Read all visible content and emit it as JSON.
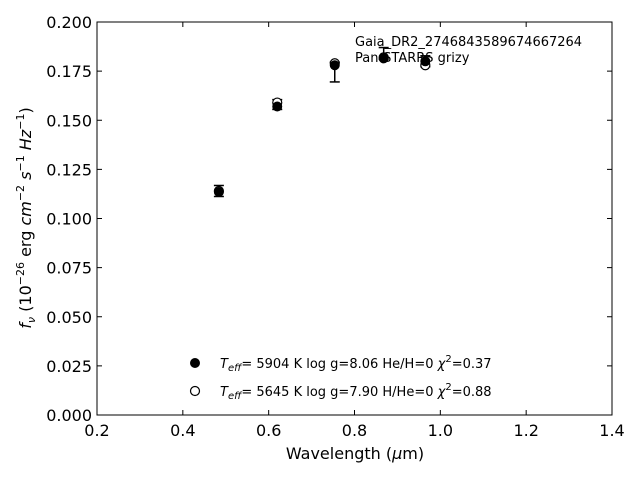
{
  "chart_data": {
    "type": "scatter",
    "title": "",
    "xlabel": "Wavelength (μm)",
    "ylabel": "f_ν (10^-26 erg cm^-2 s^-1 Hz^-1)",
    "xlim": [
      0.2,
      1.4
    ],
    "ylim": [
      0.0,
      0.2
    ],
    "xticks": [
      "0.2",
      "0.4",
      "0.6",
      "0.8",
      "1.0",
      "1.2",
      "1.4"
    ],
    "yticks": [
      "0.000",
      "0.025",
      "0.050",
      "0.075",
      "0.100",
      "0.125",
      "0.150",
      "0.175",
      "0.200"
    ],
    "grid": false,
    "annotations": [
      "Gaia_DR2_2746843589674667264",
      "Pan-STARRS grizy"
    ],
    "observed": {
      "x": [
        0.484,
        0.62,
        0.754,
        0.868,
        0.965
      ],
      "y": [
        0.114,
        0.158,
        0.1745,
        0.184,
        0.18
      ],
      "yerr": [
        0.0028,
        0.0025,
        0.005,
        0.003,
        0.0028
      ]
    },
    "series": [
      {
        "legend": "T_eff=  5904 K  log g=8.06  He/H=0  χ²=0.37",
        "marker": "filled-circle",
        "x": [
          0.484,
          0.62,
          0.754,
          0.868,
          0.965
        ],
        "y": [
          0.1135,
          0.157,
          0.178,
          0.1815,
          0.18
        ]
      },
      {
        "legend": "T_eff=  5645 K  log g=7.90  H/He=0  χ²=0.88",
        "marker": "open-circle",
        "x": [
          0.484,
          0.62,
          0.754,
          0.868,
          0.965
        ],
        "y": [
          0.114,
          0.159,
          0.179,
          0.182,
          0.178
        ]
      }
    ],
    "legend_position": "bottom-center",
    "colors": {
      "marker": "#000000",
      "axis": "#000000"
    }
  }
}
